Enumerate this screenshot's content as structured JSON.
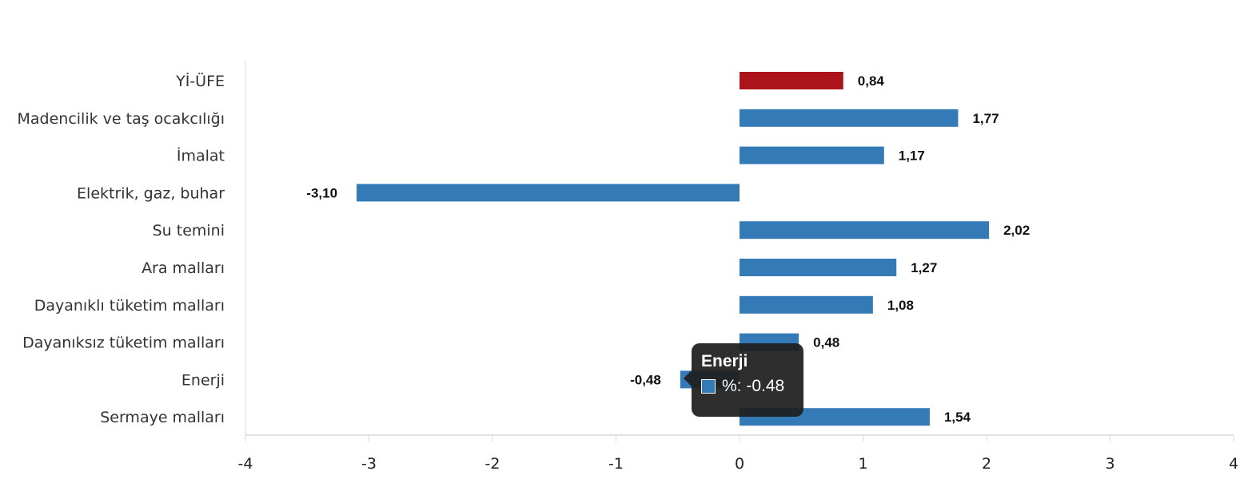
{
  "colors": {
    "highlight": "#ab141b",
    "bar": "#337ab7",
    "axis": "#d9d9d9"
  },
  "chart_data": {
    "type": "bar",
    "orientation": "horizontal",
    "categories": [
      "Yİ-ÜFE",
      "Madencilik ve taş ocakcılığı",
      "İmalat",
      "Elektrik, gaz, buhar",
      "Su temini",
      "Ara malları",
      "Dayanıklı tüketim malları",
      "Dayanıksız tüketim malları",
      "Enerji",
      "Sermaye malları"
    ],
    "values": [
      0.84,
      1.77,
      1.17,
      -3.1,
      2.02,
      1.27,
      1.08,
      0.48,
      -0.48,
      1.54
    ],
    "value_labels": [
      "0,84",
      "1,77",
      "1,17",
      "-3,10",
      "2,02",
      "1,27",
      "1,08",
      "0,48",
      "-0,48",
      "1,54"
    ],
    "highlight_index": 0,
    "xlim": [
      -4,
      4
    ],
    "x_ticks": [
      -4,
      -3,
      -2,
      -1,
      0,
      1,
      2,
      3,
      4
    ],
    "title": "",
    "xlabel": "",
    "ylabel": "",
    "grid": false,
    "legend": "none"
  },
  "tooltip": {
    "title": "Enerji",
    "text": "%: -0.48"
  }
}
